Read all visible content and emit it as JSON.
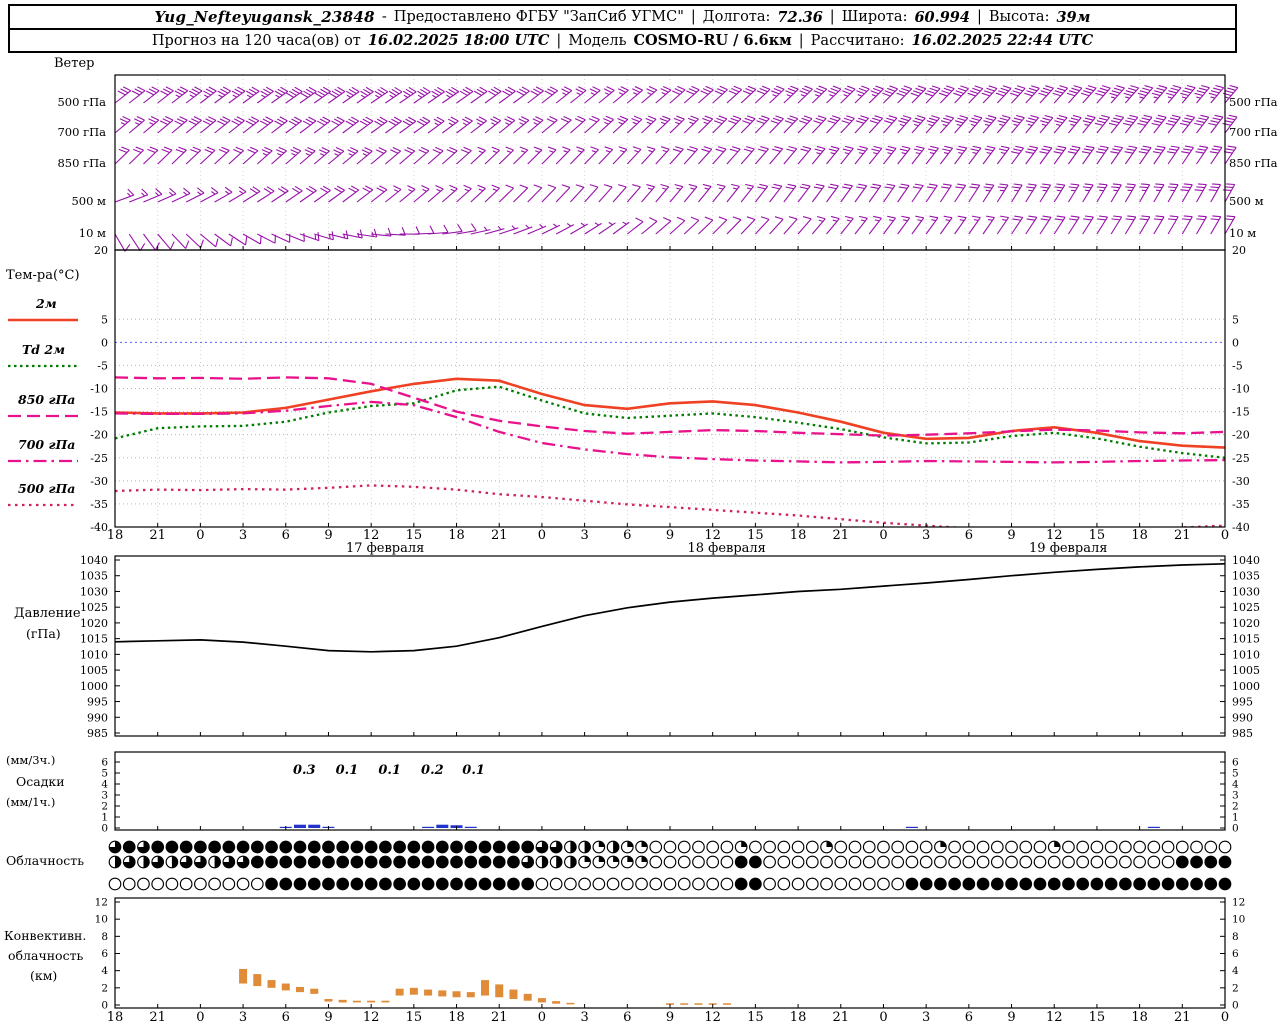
{
  "header": {
    "row1": {
      "station": "Yug_Nefteyugansk_23848",
      "dash": "-",
      "provided": "Предоставлено ФГБУ \"ЗапСиб УГМС\"",
      "sep": "|",
      "lon_label": "Долгота:",
      "lon_value": "72.36",
      "lat_label": "Широта:",
      "lat_value": "60.994",
      "alt_label": "Высота:",
      "alt_value": "39м"
    },
    "row2": {
      "prefix": "Прогноз на 120 часа(ов) от",
      "run_time": "16.02.2025 18:00 UTC",
      "sep": "|",
      "model_label": "Модель",
      "model_value": "COSMO-RU / 6.6км",
      "calc_label": "Рассчитано:",
      "calc_time": "16.02.2025 22:44 UTC"
    }
  },
  "labels": {
    "wind_title": "Ветер",
    "wind_levels": [
      "500 гПа",
      "700 гПа",
      "850 гПа",
      "500 м",
      "10 м"
    ],
    "temp_title": "Тем-ра(°C)",
    "legend_t2m": "2м",
    "legend_td": "Td 2м",
    "legend_850": "850 гПа",
    "legend_700": "700 гПа",
    "legend_500": "500 гПа",
    "pressure_title": "Давление",
    "pressure_unit": "(гПа)",
    "precip_unit3": "(мм/3ч.)",
    "precip_title": "Осадки",
    "precip_unit1": "(мм/1ч.)",
    "cloud_title": "Облачность",
    "conv_line1": "Конвективн.",
    "conv_line2": "облачность",
    "conv_line3": "(км)"
  },
  "axes": {
    "hours": [
      "18",
      "21",
      "0",
      "3",
      "6",
      "9",
      "12",
      "15",
      "18",
      "21",
      "0",
      "3",
      "6",
      "9",
      "12",
      "15",
      "18",
      "21",
      "0",
      "3",
      "6",
      "9",
      "12",
      "15",
      "18",
      "21",
      "0"
    ],
    "dates": [
      "17 февраля",
      "18 февраля",
      "19 февраля"
    ],
    "date_center_hours": [
      18,
      42,
      66
    ],
    "temp_ticks": [
      20,
      5,
      0,
      -5,
      -10,
      -15,
      -20,
      -25,
      -30,
      -35,
      -40
    ],
    "pressure_ticks": [
      1040,
      1035,
      1030,
      1025,
      1020,
      1015,
      1010,
      1005,
      1000,
      995,
      990,
      985
    ],
    "precip_ticks": [
      6,
      5,
      4,
      3,
      2,
      1,
      0
    ],
    "conv_ticks": [
      12,
      10,
      8,
      6,
      4,
      2,
      0
    ]
  },
  "chart_data": [
    {
      "type": "wind-barbs",
      "panel": "Ветер",
      "time_step_h": 3,
      "levels": [
        {
          "name": "500 гПа",
          "dir_deg": [
            52,
            52,
            53,
            54,
            55,
            55,
            56,
            56,
            55,
            54,
            52,
            51,
            50,
            49,
            48,
            47,
            46,
            46,
            45,
            44,
            44,
            43,
            42,
            42,
            41,
            40,
            40
          ],
          "speed_kt": [
            30,
            32,
            34,
            36,
            38,
            38,
            36,
            34,
            32,
            30,
            28,
            26,
            26,
            28,
            30,
            32,
            34,
            36,
            38,
            38,
            40,
            40,
            42,
            42,
            44,
            44,
            45
          ]
        },
        {
          "name": "700 гПа",
          "dir_deg": [
            50,
            50,
            51,
            52,
            53,
            53,
            54,
            54,
            53,
            51,
            50,
            48,
            47,
            46,
            45,
            44,
            44,
            43,
            42,
            42,
            41,
            40,
            40,
            39,
            38,
            38,
            37
          ],
          "speed_kt": [
            26,
            28,
            28,
            30,
            32,
            32,
            30,
            28,
            26,
            24,
            22,
            22,
            24,
            26,
            28,
            28,
            30,
            32,
            32,
            34,
            34,
            36,
            36,
            38,
            38,
            40,
            40
          ]
        },
        {
          "name": "850 гПа",
          "dir_deg": [
            46,
            46,
            47,
            48,
            49,
            50,
            50,
            49,
            48,
            46,
            45,
            44,
            43,
            42,
            42,
            41,
            40,
            39,
            39,
            38,
            37,
            37,
            36,
            35,
            35,
            34,
            34
          ],
          "speed_kt": [
            18,
            20,
            20,
            22,
            24,
            24,
            22,
            20,
            18,
            16,
            14,
            14,
            16,
            18,
            20,
            22,
            22,
            24,
            24,
            26,
            26,
            28,
            28,
            30,
            30,
            32,
            32
          ]
        },
        {
          "name": "500 м",
          "dir_deg": [
            70,
            66,
            62,
            58,
            56,
            54,
            52,
            50,
            48,
            46,
            44,
            42,
            41,
            40,
            39,
            38,
            37,
            36,
            35,
            34,
            33,
            32,
            32,
            31,
            30,
            30,
            29
          ],
          "speed_kt": [
            14,
            16,
            16,
            18,
            20,
            20,
            18,
            16,
            14,
            12,
            10,
            10,
            12,
            14,
            16,
            18,
            18,
            20,
            20,
            22,
            22,
            24,
            24,
            26,
            26,
            28,
            28
          ]
        },
        {
          "name": "10 м",
          "dir_deg": [
            150,
            140,
            130,
            120,
            112,
            104,
            96,
            88,
            80,
            72,
            64,
            58,
            52,
            48,
            45,
            43,
            41,
            39,
            37,
            36,
            35,
            34,
            33,
            32,
            31,
            30,
            30
          ],
          "speed_kt": [
            8,
            10,
            10,
            12,
            12,
            14,
            12,
            10,
            8,
            6,
            6,
            6,
            8,
            10,
            10,
            12,
            12,
            14,
            14,
            16,
            16,
            18,
            18,
            20,
            20,
            22,
            22
          ]
        }
      ]
    },
    {
      "type": "line",
      "panel": "Температура",
      "ylabel": "°C",
      "ylim": [
        -40,
        20
      ],
      "x_step_h": 3,
      "series": [
        {
          "name": "2м",
          "color": "#ef4123",
          "style": "solid",
          "values": [
            -15.2,
            -15.4,
            -15.4,
            -15.2,
            -14.2,
            -12.4,
            -10.6,
            -9.0,
            -7.9,
            -8.3,
            -11.2,
            -13.6,
            -14.4,
            -13.2,
            -12.8,
            -13.6,
            -15.2,
            -17.2,
            -19.6,
            -20.9,
            -20.7,
            -19.2,
            -18.4,
            -19.6,
            -21.4,
            -22.4,
            -22.8
          ]
        },
        {
          "name": "Td 2м",
          "color": "#007d00",
          "style": "dotted",
          "values": [
            -20.8,
            -18.6,
            -18.2,
            -18.1,
            -17.2,
            -15.2,
            -13.8,
            -13.2,
            -10.4,
            -9.6,
            -12.6,
            -15.4,
            -16.4,
            -15.9,
            -15.4,
            -16.2,
            -17.4,
            -18.8,
            -20.6,
            -21.9,
            -21.7,
            -20.3,
            -19.6,
            -20.8,
            -22.6,
            -24.0,
            -25.0
          ]
        },
        {
          "name": "850 гПа",
          "color": "#e8128c",
          "style": "longdash",
          "values": [
            -7.6,
            -7.8,
            -7.7,
            -7.9,
            -7.6,
            -7.8,
            -9.0,
            -12.0,
            -15.0,
            -17.0,
            -18.2,
            -19.2,
            -19.8,
            -19.4,
            -19.0,
            -19.2,
            -19.6,
            -19.9,
            -20.2,
            -20.0,
            -19.7,
            -19.3,
            -18.9,
            -19.1,
            -19.5,
            -19.7,
            -19.4
          ]
        },
        {
          "name": "700 гПа",
          "color": "#e8128c",
          "style": "dashdot",
          "values": [
            -15.4,
            -15.5,
            -15.5,
            -15.4,
            -14.8,
            -13.8,
            -12.9,
            -13.6,
            -16.2,
            -19.4,
            -21.8,
            -23.2,
            -24.2,
            -24.9,
            -25.3,
            -25.6,
            -25.8,
            -26.0,
            -25.9,
            -25.7,
            -25.8,
            -25.9,
            -26.0,
            -25.9,
            -25.7,
            -25.6,
            -25.5
          ]
        },
        {
          "name": "500 гПа",
          "color": "#cf2060",
          "style": "bolddot",
          "values": [
            -32.2,
            -31.9,
            -32.0,
            -31.8,
            -31.9,
            -31.5,
            -31.0,
            -31.3,
            -31.9,
            -32.9,
            -33.5,
            -34.3,
            -35.1,
            -35.7,
            -36.3,
            -36.9,
            -37.5,
            -38.3,
            -39.1,
            -39.7,
            -40.3,
            -40.7,
            -40.9,
            -40.8,
            -40.5,
            -40.1,
            -39.7
          ]
        }
      ]
    },
    {
      "type": "line",
      "panel": "Давление",
      "ylabel": "гПа",
      "ylim": [
        985,
        1040
      ],
      "x_step_h": 3,
      "series": [
        {
          "name": "Давление",
          "color": "#000000",
          "style": "solid",
          "values": [
            1014,
            1014.3,
            1014.6,
            1013.9,
            1012.6,
            1011.2,
            1010.8,
            1011.2,
            1012.6,
            1015.3,
            1018.9,
            1022.3,
            1024.8,
            1026.6,
            1027.9,
            1028.9,
            1030,
            1030.7,
            1031.7,
            1032.7,
            1033.8,
            1035,
            1036.1,
            1037,
            1037.8,
            1038.4,
            1038.8
          ]
        }
      ]
    },
    {
      "type": "bar",
      "panel": "Осадки",
      "ylim": [
        0,
        6
      ],
      "color": "#2233cc",
      "labels_3h": [
        {
          "h": 13.3,
          "text": "0.3"
        },
        {
          "h": 16.3,
          "text": "0.1"
        },
        {
          "h": 19.3,
          "text": "0.1"
        },
        {
          "h": 22.3,
          "text": "0.2"
        },
        {
          "h": 25.2,
          "text": "0.1"
        }
      ],
      "bars_1h": [
        {
          "h": 12,
          "v": 0.1
        },
        {
          "h": 13,
          "v": 0.3
        },
        {
          "h": 14,
          "v": 0.3
        },
        {
          "h": 15,
          "v": 0.1
        },
        {
          "h": 22,
          "v": 0.1
        },
        {
          "h": 23,
          "v": 0.3
        },
        {
          "h": 24,
          "v": 0.25
        },
        {
          "h": 25,
          "v": 0.1
        },
        {
          "h": 56,
          "v": 0.08
        },
        {
          "h": 73,
          "v": 0.08
        }
      ]
    },
    {
      "type": "symbol-rows",
      "panel": "Облачность",
      "octas_scale": 8,
      "rows": [
        "686888888888888888888888888888664424220000002000002000000020000000200000000000 6",
        "4646466466888888888888888888864442222200000088000000000000000000000000000008888",
        "0000000000088888888888888888880000000000000088000000000088888888888888888888888"
      ]
    },
    {
      "type": "range-bar",
      "panel": "Конвективная облачность",
      "ylim": [
        0,
        12
      ],
      "unit": "км",
      "color": "#e08b38",
      "bars": [
        {
          "h": 9,
          "b": 2.5,
          "t": 4.2
        },
        {
          "h": 10,
          "b": 2.2,
          "t": 3.6
        },
        {
          "h": 11,
          "b": 2.0,
          "t": 2.9
        },
        {
          "h": 12,
          "b": 1.7,
          "t": 2.5
        },
        {
          "h": 13,
          "b": 1.5,
          "t": 2.1
        },
        {
          "h": 14,
          "b": 1.3,
          "t": 1.9
        },
        {
          "h": 15,
          "b": 0.4,
          "t": 0.7
        },
        {
          "h": 16,
          "b": 0.3,
          "t": 0.6
        },
        {
          "h": 17,
          "b": 0.3,
          "t": 0.5
        },
        {
          "h": 18,
          "b": 0.3,
          "t": 0.5
        },
        {
          "h": 19,
          "b": 0.3,
          "t": 0.5
        },
        {
          "h": 20,
          "b": 1.1,
          "t": 1.9
        },
        {
          "h": 21,
          "b": 1.2,
          "t": 2.0
        },
        {
          "h": 22,
          "b": 1.1,
          "t": 1.8
        },
        {
          "h": 23,
          "b": 1.0,
          "t": 1.7
        },
        {
          "h": 24,
          "b": 0.9,
          "t": 1.6
        },
        {
          "h": 25,
          "b": 0.9,
          "t": 1.5
        },
        {
          "h": 26,
          "b": 1.1,
          "t": 2.9
        },
        {
          "h": 27,
          "b": 0.9,
          "t": 2.4
        },
        {
          "h": 28,
          "b": 0.7,
          "t": 1.8
        },
        {
          "h": 29,
          "b": 0.5,
          "t": 1.3
        },
        {
          "h": 30,
          "b": 0.3,
          "t": 0.8
        },
        {
          "h": 31,
          "b": 0.15,
          "t": 0.45
        },
        {
          "h": 32,
          "b": 0.1,
          "t": 0.25
        },
        {
          "h": 39,
          "b": 0.1,
          "t": 0.2
        },
        {
          "h": 40,
          "b": 0.1,
          "t": 0.2
        },
        {
          "h": 41,
          "b": 0.1,
          "t": 0.2
        },
        {
          "h": 42,
          "b": 0.1,
          "t": 0.2
        },
        {
          "h": 43,
          "b": 0.1,
          "t": 0.2
        }
      ]
    }
  ]
}
